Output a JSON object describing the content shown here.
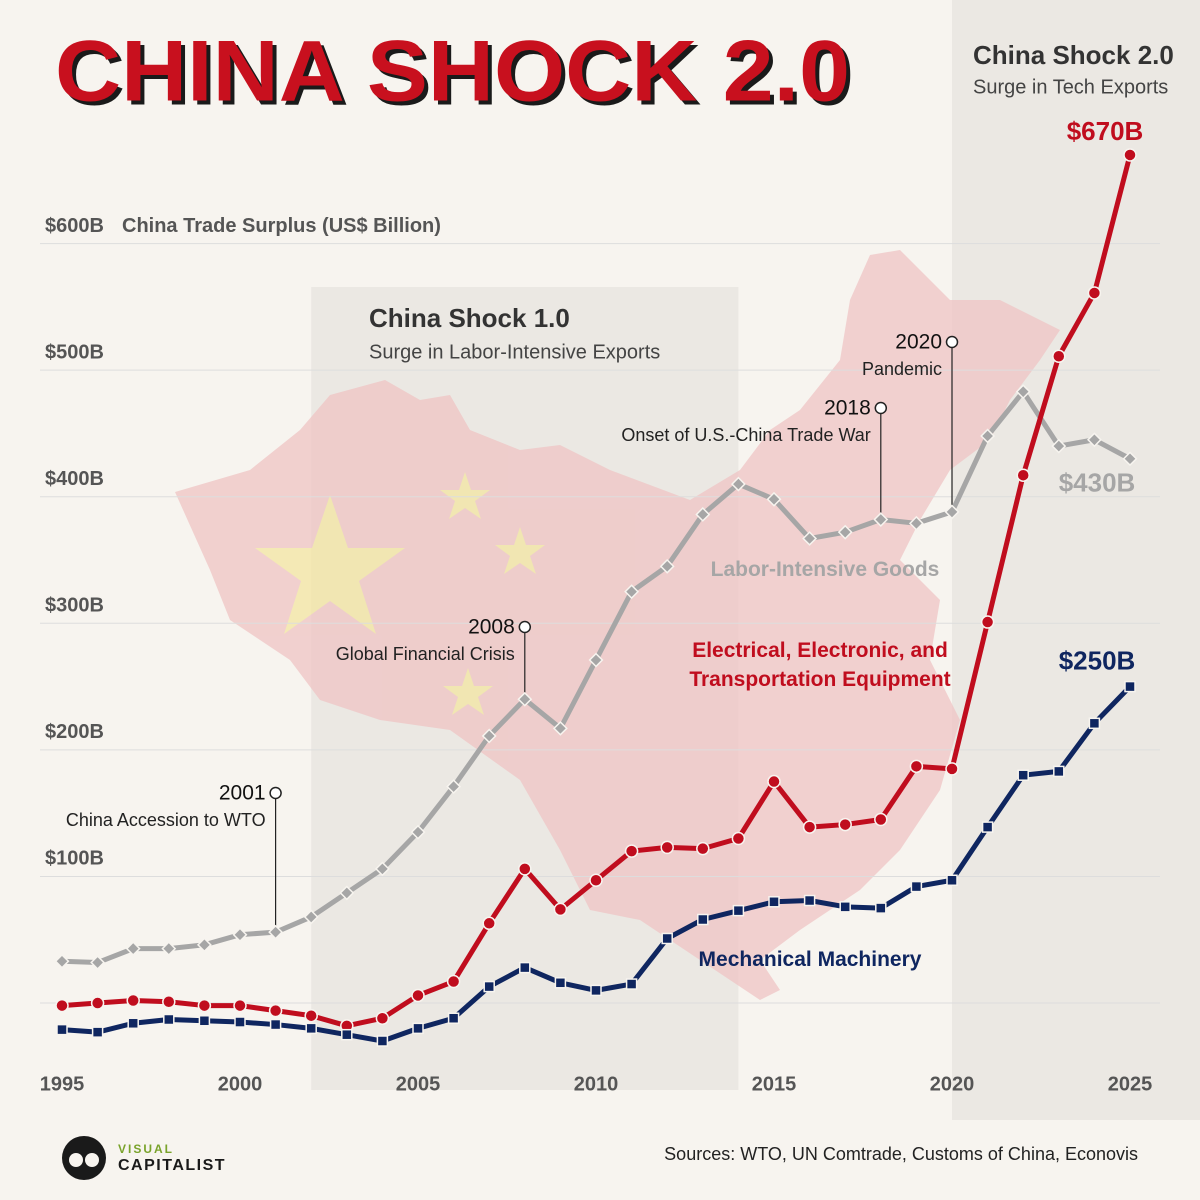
{
  "chart_data": {
    "type": "line",
    "title": "CHINA SHOCK 2.0",
    "y_axis_label": "China Trade Surplus (US$ Billion)",
    "x": [
      1995,
      1996,
      1997,
      1998,
      1999,
      2000,
      2001,
      2002,
      2003,
      2004,
      2005,
      2006,
      2007,
      2008,
      2009,
      2010,
      2011,
      2012,
      2013,
      2014,
      2015,
      2016,
      2017,
      2018,
      2019,
      2020,
      2021,
      2022,
      2023,
      2024,
      2025
    ],
    "xlim": [
      1995,
      2025
    ],
    "xticks": [
      1995,
      2000,
      2005,
      2010,
      2015,
      2020,
      2025
    ],
    "ylim": [
      -45,
      700
    ],
    "yticks": [
      {
        "value": 100,
        "label": "$100B"
      },
      {
        "value": 200,
        "label": "$200B"
      },
      {
        "value": 300,
        "label": "$300B"
      },
      {
        "value": 400,
        "label": "$400B"
      },
      {
        "value": 500,
        "label": "$500B"
      },
      {
        "value": 600,
        "label": "$600B"
      }
    ],
    "grid": true,
    "series": [
      {
        "name": "Labor-Intensive Goods",
        "color": "#a6a6a6",
        "marker": "diamond",
        "values": [
          33,
          32,
          43,
          43,
          46,
          54,
          56,
          68,
          87,
          106,
          135,
          171,
          211,
          240,
          217,
          271,
          325,
          345,
          386,
          410,
          398,
          367,
          372,
          382,
          379,
          388,
          448,
          483,
          440,
          445,
          430
        ],
        "value_labels": [
          null,
          null,
          null,
          null,
          null,
          null,
          null,
          null,
          null,
          null,
          null,
          null,
          null,
          null,
          null,
          null,
          null,
          null,
          null,
          null,
          null,
          null,
          null,
          null,
          null,
          null,
          null,
          null,
          null,
          null,
          "$430B"
        ]
      },
      {
        "name": "Electrical, Electronic, and Transportation Equipment",
        "color": "#c00d1e",
        "marker": "circle",
        "values": [
          -2,
          0,
          2,
          1,
          -2,
          -2,
          -6,
          -10,
          -18,
          -12,
          6,
          17,
          63,
          106,
          74,
          97,
          120,
          123,
          122,
          130,
          175,
          139,
          141,
          145,
          187,
          185,
          301,
          417,
          511,
          561,
          670
        ],
        "value_labels": [
          null,
          null,
          null,
          null,
          null,
          null,
          null,
          null,
          null,
          null,
          null,
          null,
          null,
          null,
          null,
          null,
          null,
          null,
          null,
          null,
          null,
          null,
          null,
          null,
          null,
          null,
          null,
          null,
          null,
          null,
          "$670B"
        ]
      },
      {
        "name": "Mechanical Machinery",
        "color": "#0f2660",
        "marker": "square",
        "values": [
          -21,
          -23,
          -16,
          -13,
          -14,
          -15,
          -17,
          -20,
          -25,
          -30,
          -20,
          -12,
          13,
          28,
          16,
          10,
          15,
          51,
          66,
          73,
          80,
          81,
          76,
          75,
          92,
          97,
          139,
          180,
          183,
          221,
          250
        ],
        "value_labels": [
          null,
          null,
          null,
          null,
          null,
          null,
          null,
          null,
          null,
          null,
          null,
          null,
          null,
          null,
          null,
          null,
          null,
          null,
          null,
          null,
          null,
          null,
          null,
          null,
          null,
          null,
          null,
          null,
          null,
          null,
          "$250B"
        ]
      }
    ],
    "shaded_regions": [
      {
        "title": "China Shock 1.0",
        "subtitle": "Surge in Labor-Intensive Exports",
        "start": 2002,
        "end": 2014
      },
      {
        "title": "China Shock 2.0",
        "subtitle": "Surge in Tech Exports",
        "start": 2020
      }
    ],
    "annotations": [
      {
        "year": 2001,
        "label": "China Accession to WTO"
      },
      {
        "year": 2008,
        "label": "Global Financial Crisis"
      },
      {
        "year": 2018,
        "label": "Onset of U.S.-China Trade War"
      },
      {
        "year": 2020,
        "label": "Pandemic"
      }
    ],
    "source": "Sources: WTO, UN Comtrade, Customs of China, Econovis",
    "brand": {
      "line1": "VISUAL",
      "line2": "CAPITALIST"
    }
  }
}
